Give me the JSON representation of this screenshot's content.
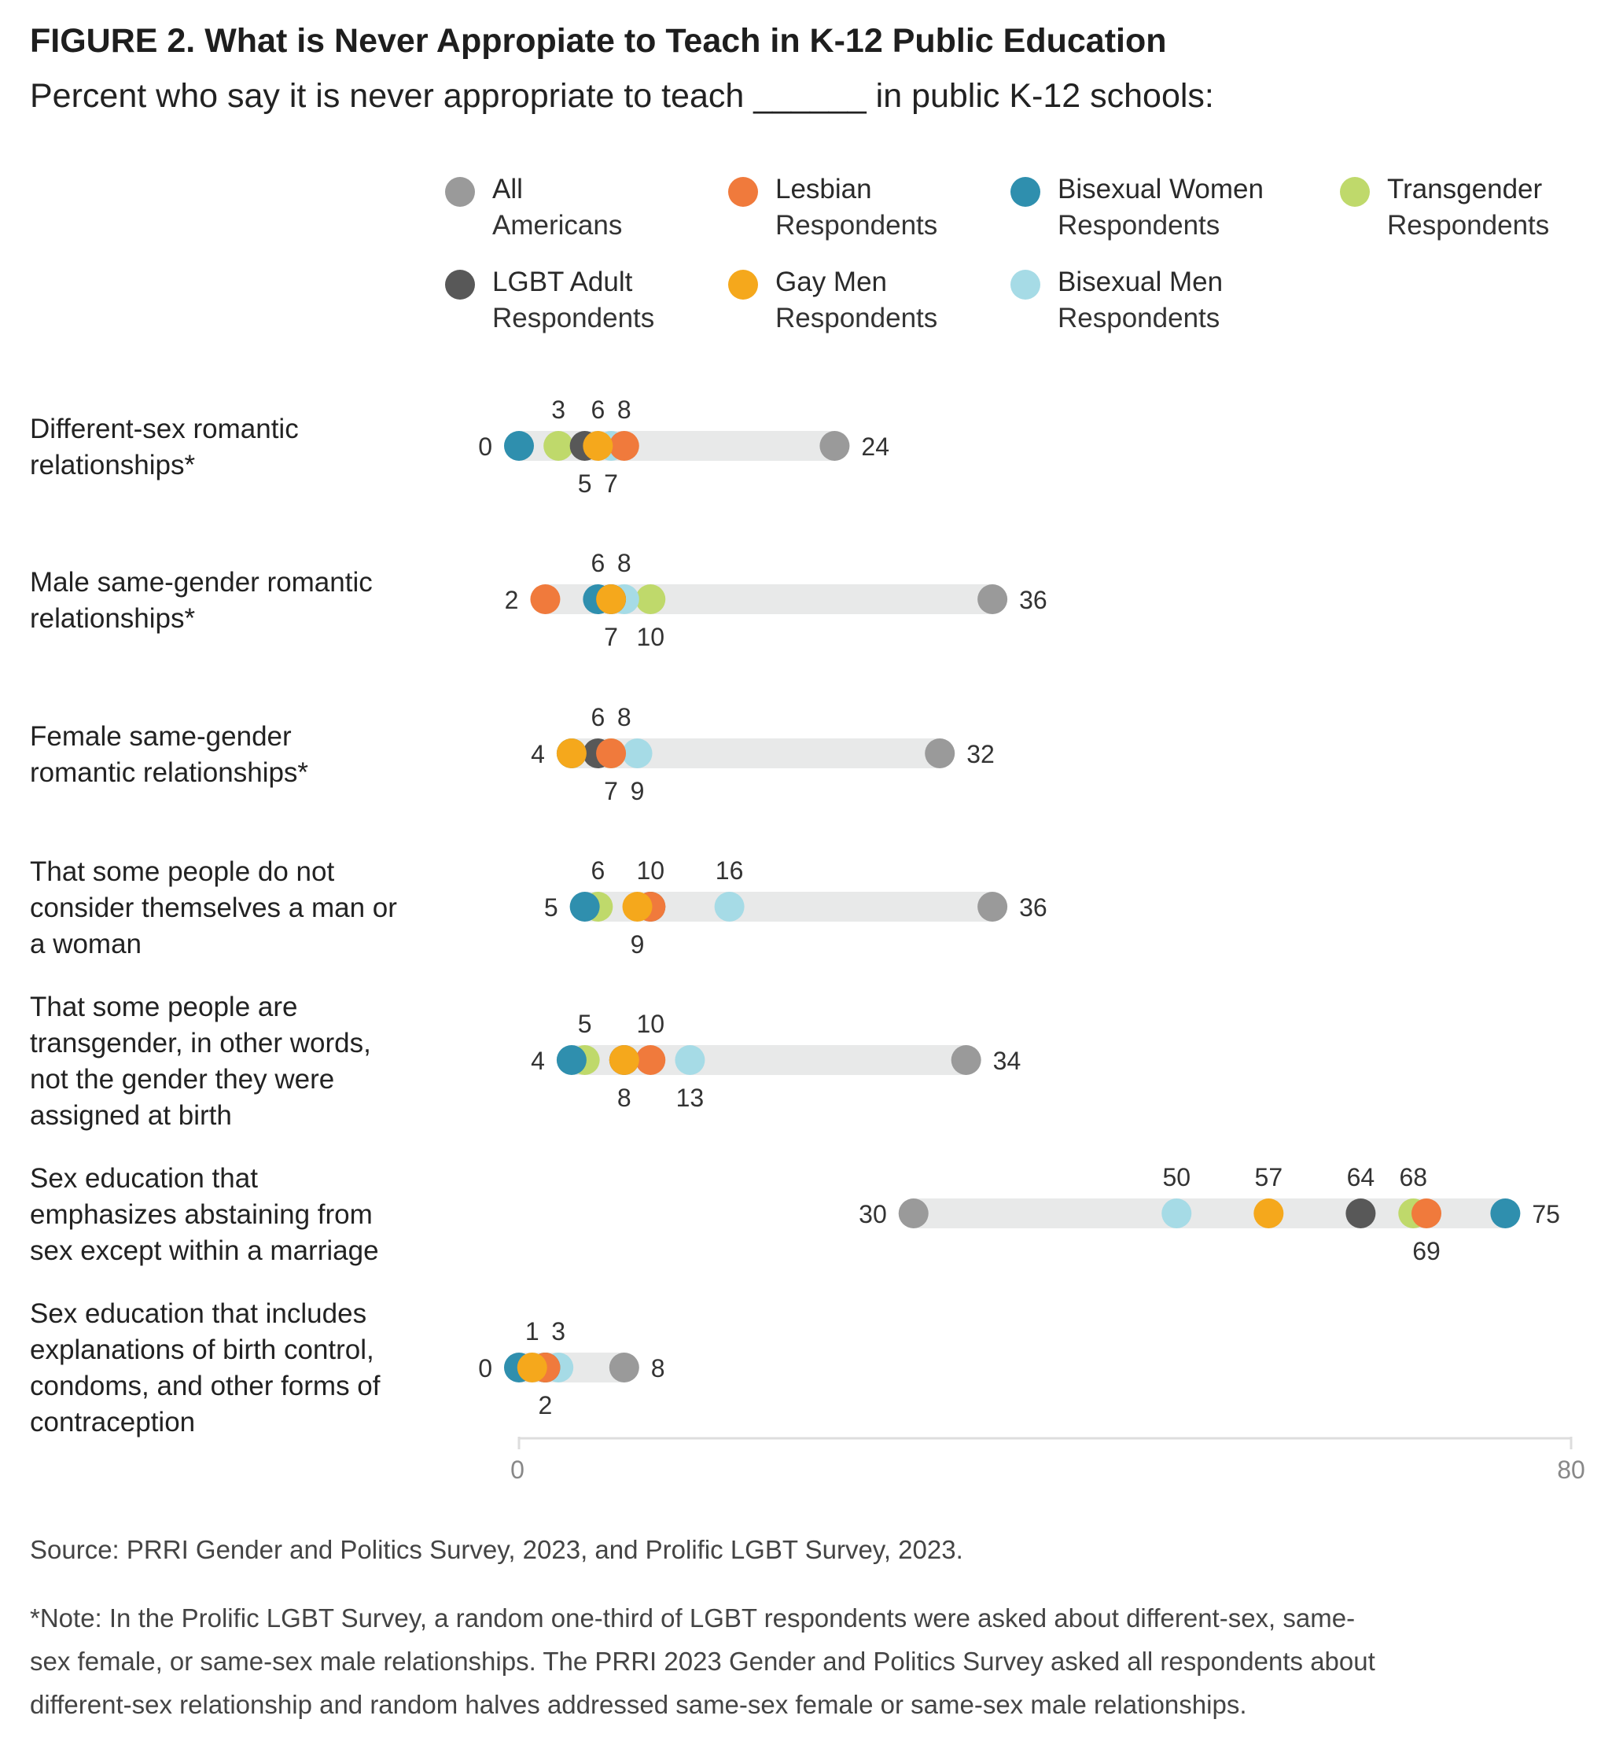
{
  "header": {
    "title": "FIGURE 2. What is Never Appropiate to Teach in K-12 Public Education",
    "subtitle": "Percent who say it is never appropriate to teach ______ in public K-12 schools:"
  },
  "legend": [
    {
      "line1": "All",
      "line2": "Americans",
      "color": "#9a9a9a"
    },
    {
      "line1": "Lesbian",
      "line2": "Respondents",
      "color": "#f07a3c"
    },
    {
      "line1": "Bisexual Women",
      "line2": "Respondents",
      "color": "#2f8fae"
    },
    {
      "line1": "Transgender",
      "line2": "Respondents",
      "color": "#bfd96b"
    },
    {
      "line1": "LGBT Adult",
      "line2": "Respondents",
      "color": "#585858"
    },
    {
      "line1": "Gay Men",
      "line2": "Respondents",
      "color": "#f5a81c"
    },
    {
      "line1": "Bisexual Men",
      "line2": "Respondents",
      "color": "#a6dbe6"
    }
  ],
  "rows": [
    {
      "line1": "Different-sex romantic",
      "line2": "relationships*"
    },
    {
      "line1": "Male same-gender romantic",
      "line2": "relationships*"
    },
    {
      "line1": "Female same-gender",
      "line2": "romantic relationships*"
    },
    {
      "line1": "That some people do not",
      "line2": "consider themselves a man or",
      "line3": "a woman"
    },
    {
      "line1": "That some people are",
      "line2": "transgender, in other words,",
      "line3": "not the gender they were",
      "line4": "assigned at birth"
    },
    {
      "line1": "Sex education that",
      "line2": "emphasizes abstaining from",
      "line3": "sex except within a marriage"
    },
    {
      "line1": "Sex education that includes",
      "line2": "explanations of birth control,",
      "line3": "condoms, and other forms of",
      "line4": "contraception"
    }
  ],
  "chart_data": {
    "type": "dot",
    "title": "FIGURE 2. What is Never Appropiate to Teach in K-12 Public Education",
    "xlim": [
      0,
      80
    ],
    "x_ticks": [
      "0",
      "80"
    ],
    "categories": [
      "Different-sex romantic relationships*",
      "Male same-gender romantic relationships*",
      "Female same-gender romantic relationships*",
      "That some people do not consider themselves a man or a woman",
      "That some people are transgender, in other words, not the gender they were assigned at birth",
      "Sex education that emphasizes abstaining from sex except within a marriage",
      "Sex education that includes explanations of birth control, condoms, and other forms of contraception"
    ],
    "series": [
      {
        "name": "All Americans",
        "color": "#9a9a9a",
        "values": [
          24,
          36,
          32,
          36,
          34,
          30,
          8
        ]
      },
      {
        "name": "LGBT Adult Respondents",
        "color": "#585858",
        "values": [
          5,
          7,
          6,
          10,
          8,
          64,
          2
        ]
      },
      {
        "name": "Lesbian Respondents",
        "color": "#f07a3c",
        "values": [
          8,
          2,
          7,
          10,
          10,
          69,
          2
        ]
      },
      {
        "name": "Gay Men Respondents",
        "color": "#f5a81c",
        "values": [
          6,
          7,
          4,
          9,
          8,
          57,
          1
        ]
      },
      {
        "name": "Bisexual Women Respondents",
        "color": "#2f8fae",
        "values": [
          0,
          6,
          4,
          5,
          4,
          75,
          0
        ]
      },
      {
        "name": "Bisexual Men Respondents",
        "color": "#a6dbe6",
        "values": [
          7,
          8,
          9,
          16,
          13,
          50,
          3
        ]
      },
      {
        "name": "Transgender Respondents",
        "color": "#bfd96b",
        "values": [
          3,
          10,
          7,
          6,
          5,
          68,
          2
        ]
      }
    ],
    "value_labels": [
      {
        "above": [
          "3",
          "6",
          "8"
        ],
        "below": [
          "5",
          "7"
        ],
        "min": "0",
        "max": "24"
      },
      {
        "above": [
          "6",
          "8"
        ],
        "below": [
          "7",
          "10"
        ],
        "min": "2",
        "max": "36"
      },
      {
        "above": [
          "6",
          "8"
        ],
        "below": [
          "7",
          "9"
        ],
        "min": "4",
        "max": "32"
      },
      {
        "above": [
          "6",
          "10",
          "16"
        ],
        "below": [
          "9"
        ],
        "min": "5",
        "max": "36"
      },
      {
        "above": [
          "5",
          "10"
        ],
        "below": [
          "8",
          "13"
        ],
        "min": "4",
        "max": "34"
      },
      {
        "above": [
          "50",
          "57",
          "64",
          "68"
        ],
        "below": [
          "69"
        ],
        "min": "30",
        "max": "75"
      },
      {
        "above": [
          "1",
          "3"
        ],
        "below": [
          "2"
        ],
        "min": "0",
        "max": "8"
      }
    ]
  },
  "footer": {
    "source": "Source: PRRI Gender and Politics Survey, 2023, and Prolific LGBT Survey, 2023.",
    "note_line1": "*Note: In the Prolific LGBT Survey, a random one-third of LGBT respondents were asked about different-sex, same-",
    "note_line2": "sex female, or same-sex male relationships. The PRRI 2023 Gender and Politics Survey asked all respondents about",
    "note_line3": "different-sex relationship and random halves addressed same-sex female or same-sex male relationships."
  }
}
